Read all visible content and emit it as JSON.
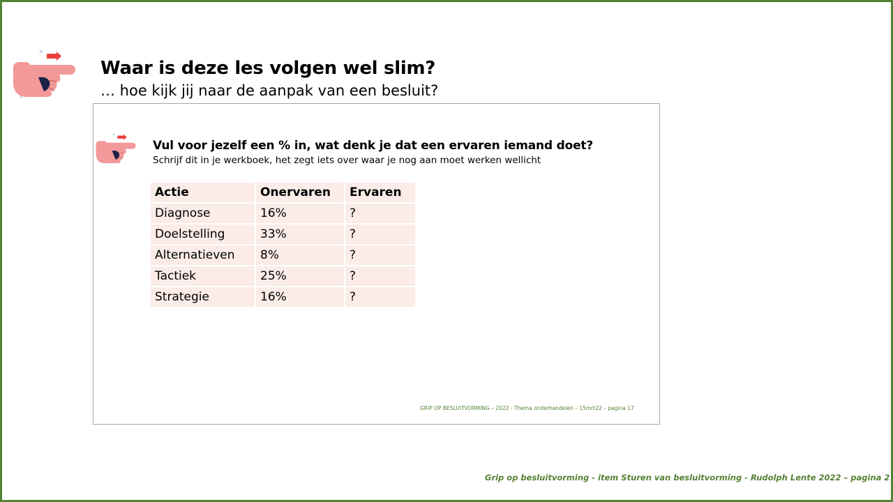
{
  "slide": {
    "title": "Waar is deze les volgen wel slim?",
    "subtitle": "… hoe kijk jij naar de aanpak van een besluit?",
    "footer": "Grip op besluitvorming  - item Sturen van besluitvorming  - Rudolph Lente 2022 – pagina 2",
    "icon": "pointing-hand-icon",
    "colors": {
      "border": "#548235",
      "footer": "#548235",
      "table_cell": "#fbece8",
      "hand": "#f4999a",
      "arrow": "#e8403c"
    }
  },
  "inner": {
    "title": "Vul voor jezelf een % in, wat denk je dat een ervaren iemand doet?",
    "subtitle": "Schrijf dit in je werkboek, het zegt iets over waar je nog aan moet werken wellicht",
    "footer": "GRIP OP BESLUITVORMING – 2022  - Thema onderhandelen – 15mrt22 – pagina 17",
    "table": {
      "headers": [
        "Actie",
        "Onervaren",
        "Ervaren"
      ],
      "rows": [
        [
          "Diagnose",
          "16%",
          "?"
        ],
        [
          "Doelstelling",
          "33%",
          "?"
        ],
        [
          "Alternatieven",
          "8%",
          "?"
        ],
        [
          "Tactiek",
          "25%",
          "?"
        ],
        [
          "Strategie",
          "16%",
          "?"
        ]
      ]
    }
  }
}
